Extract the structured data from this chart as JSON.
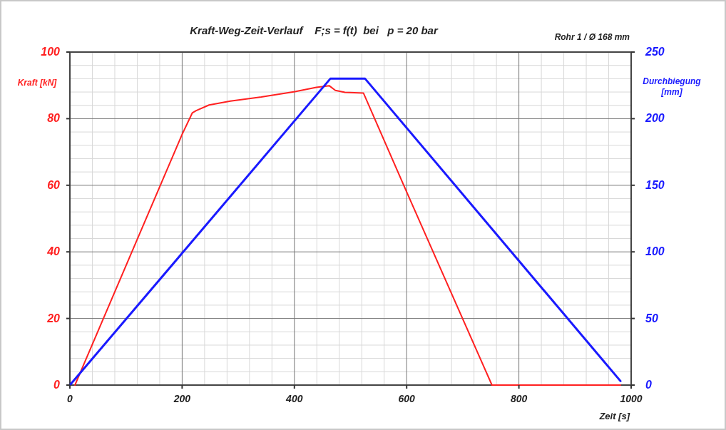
{
  "chart_data": {
    "type": "line",
    "title": "Kraft-Weg-Zeit-Verlauf    F;s = f(t)  bei   p = 20 bar",
    "xlabel": "Zeit [s]",
    "ylabel": "Kraft [kN]",
    "y2label": "Durchbiegung [mm]",
    "annotations": [
      "Rohr 1 / Ø 168 mm"
    ],
    "xlim": [
      0,
      1000
    ],
    "xticks": [
      0,
      200,
      400,
      600,
      800,
      1000
    ],
    "ylim": [
      0,
      100
    ],
    "yticks": [
      0,
      20,
      40,
      60,
      80,
      100
    ],
    "y2lim": [
      0,
      250
    ],
    "y2ticks": [
      0,
      50,
      100,
      150,
      200,
      250
    ],
    "grid": true,
    "marker": "none",
    "line_style": "solid",
    "series": [
      {
        "color": "#ff2020",
        "x": [
          9,
          200,
          218,
          225,
          248,
          286,
          341,
          401,
          439,
          462,
          473,
          490,
          523,
          600,
          752,
          981
        ],
        "values": [
          0,
          75.3,
          81.7,
          82.4,
          84.1,
          85.3,
          86.5,
          88.1,
          89.4,
          89.9,
          88.5,
          87.9,
          87.7,
          58,
          0,
          0
        ]
      },
      {
        "color": "#1a1aff",
        "axis": "y2",
        "x": [
          0,
          200,
          464,
          526,
          981
        ],
        "values": [
          0,
          99,
          230,
          230,
          3
        ]
      }
    ]
  }
}
